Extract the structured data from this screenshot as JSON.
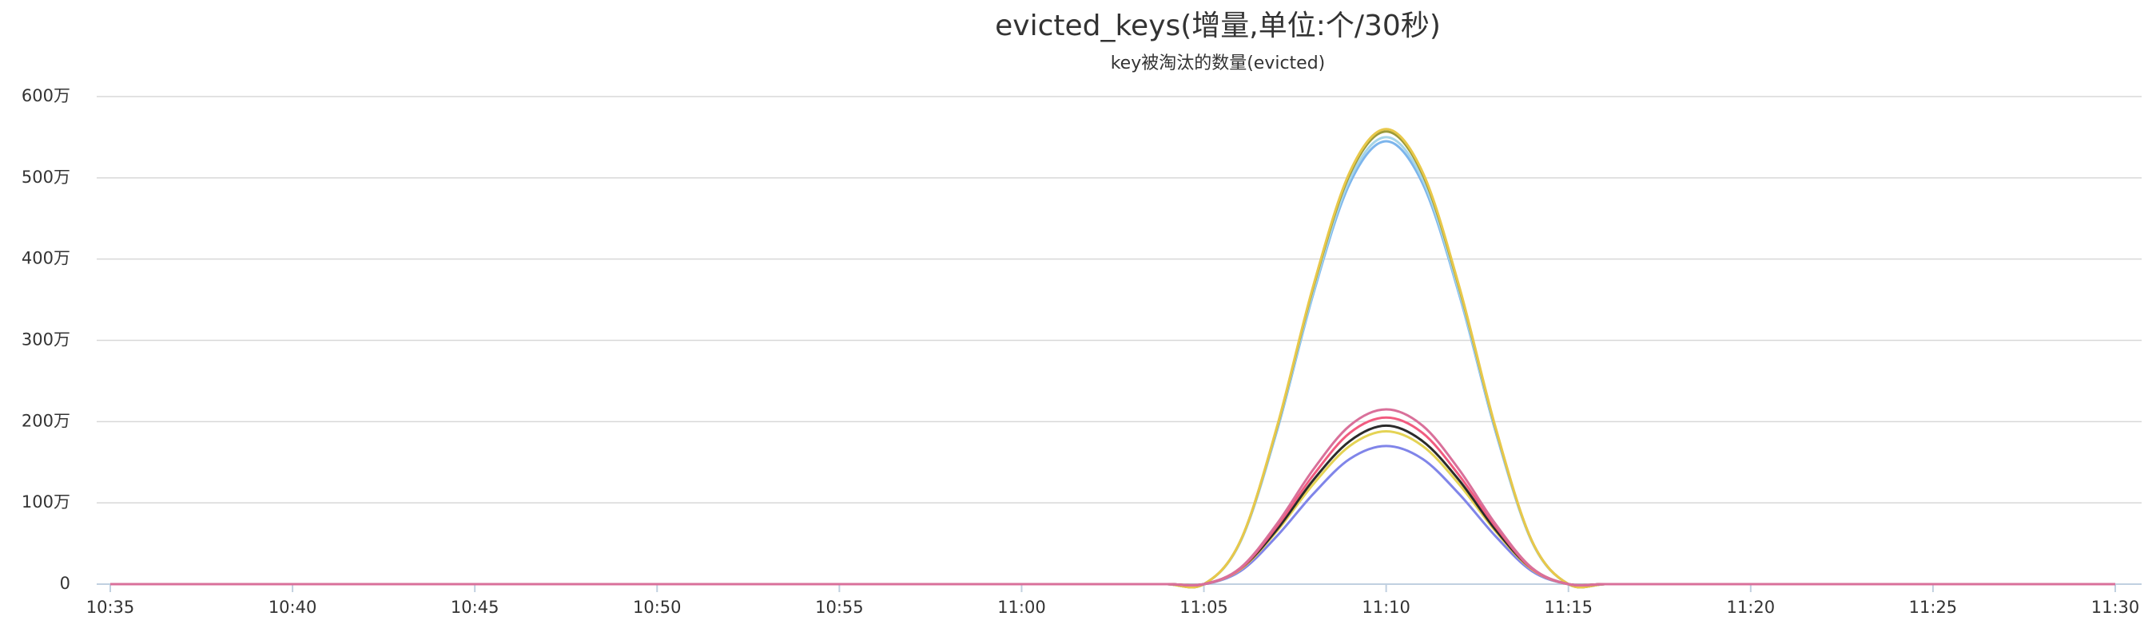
{
  "chart_data": {
    "type": "line",
    "title": "evicted_keys(增量,单位:个/30秒)",
    "subtitle": "key被淘汰的数量(evicted)",
    "categories": [
      "10:35",
      null,
      null,
      null,
      null,
      "10:40",
      null,
      null,
      null,
      null,
      "10:45",
      null,
      null,
      null,
      null,
      "10:50",
      null,
      null,
      null,
      null,
      "10:55",
      null,
      null,
      null,
      null,
      "11:00",
      null,
      null,
      null,
      null,
      "11:05",
      null,
      null,
      null,
      null,
      "11:10",
      null,
      null,
      null,
      null,
      "11:15",
      null,
      null,
      null,
      null,
      "11:20",
      null,
      null,
      null,
      null,
      "11:25",
      null,
      null,
      null,
      null,
      "11:30"
    ],
    "ylim": [
      0,
      600
    ],
    "yticks": [
      0,
      {
        "value": 100,
        "label": "100万"
      },
      {
        "value": 200,
        "label": "200万"
      },
      {
        "value": 300,
        "label": "300万"
      },
      {
        "value": 400,
        "label": "400万"
      },
      {
        "value": 500,
        "label": "500万"
      },
      {
        "value": 600,
        "label": "600万"
      }
    ],
    "grid": true,
    "series": [
      {
        "color": "#7cb5ec",
        "values": [
          0,
          0,
          0,
          0,
          0,
          0,
          0,
          0,
          0,
          0,
          0,
          0,
          0,
          0,
          0,
          0,
          0,
          0,
          0,
          0,
          0,
          0,
          0,
          0,
          0,
          0,
          0,
          0,
          0,
          0,
          0,
          52,
          188,
          357,
          493,
          545,
          493,
          357,
          188,
          52,
          0,
          0,
          0,
          0,
          0,
          0,
          0,
          0,
          0,
          0,
          0,
          0,
          0,
          0,
          0,
          0
        ]
      },
      {
        "color": "#a6d5e8",
        "values": [
          0,
          0,
          0,
          0,
          0,
          0,
          0,
          0,
          0,
          0,
          0,
          0,
          0,
          0,
          0,
          0,
          0,
          0,
          0,
          0,
          0,
          0,
          0,
          0,
          0,
          0,
          0,
          0,
          0,
          0,
          0,
          52,
          190,
          360,
          498,
          550,
          498,
          360,
          190,
          52,
          0,
          0,
          0,
          0,
          0,
          0,
          0,
          0,
          0,
          0,
          0,
          0,
          0,
          0,
          0,
          0
        ]
      },
      {
        "color": "#9c9a3a",
        "values": [
          0,
          0,
          0,
          0,
          0,
          0,
          0,
          0,
          0,
          0,
          0,
          0,
          0,
          0,
          0,
          0,
          0,
          0,
          0,
          0,
          0,
          0,
          0,
          0,
          0,
          0,
          0,
          0,
          0,
          0,
          0,
          53,
          192,
          365,
          504,
          557,
          504,
          365,
          192,
          53,
          0,
          0,
          0,
          0,
          0,
          0,
          0,
          0,
          0,
          0,
          0,
          0,
          0,
          0,
          0,
          0
        ]
      },
      {
        "color": "#e8c84a",
        "values": [
          0,
          0,
          0,
          0,
          0,
          0,
          0,
          0,
          0,
          0,
          0,
          0,
          0,
          0,
          0,
          0,
          0,
          0,
          0,
          0,
          0,
          0,
          0,
          0,
          0,
          0,
          0,
          0,
          0,
          0,
          0,
          53,
          193,
          367,
          507,
          560,
          507,
          367,
          193,
          53,
          0,
          0,
          0,
          0,
          0,
          0,
          0,
          0,
          0,
          0,
          0,
          0,
          0,
          0,
          0,
          0
        ]
      },
      {
        "color": "#8085e9",
        "values": [
          0,
          0,
          0,
          0,
          0,
          0,
          0,
          0,
          0,
          0,
          0,
          0,
          0,
          0,
          0,
          0,
          0,
          0,
          0,
          0,
          0,
          0,
          0,
          0,
          0,
          0,
          0,
          0,
          0,
          0,
          0,
          16,
          59,
          111,
          154,
          170,
          154,
          111,
          59,
          16,
          0,
          0,
          0,
          0,
          0,
          0,
          0,
          0,
          0,
          0,
          0,
          0,
          0,
          0,
          0,
          0
        ]
      },
      {
        "color": "#e4d354",
        "values": [
          0,
          0,
          0,
          0,
          0,
          0,
          0,
          0,
          0,
          0,
          0,
          0,
          0,
          0,
          0,
          0,
          0,
          0,
          0,
          0,
          0,
          0,
          0,
          0,
          0,
          0,
          0,
          0,
          0,
          0,
          0,
          18,
          65,
          123,
          170,
          188,
          170,
          123,
          65,
          18,
          0,
          0,
          0,
          0,
          0,
          0,
          0,
          0,
          0,
          0,
          0,
          0,
          0,
          0,
          0,
          0
        ]
      },
      {
        "color": "#2b2b2b",
        "values": [
          0,
          0,
          0,
          0,
          0,
          0,
          0,
          0,
          0,
          0,
          0,
          0,
          0,
          0,
          0,
          0,
          0,
          0,
          0,
          0,
          0,
          0,
          0,
          0,
          0,
          0,
          0,
          0,
          0,
          0,
          0,
          19,
          67,
          128,
          176,
          195,
          176,
          128,
          67,
          19,
          0,
          0,
          0,
          0,
          0,
          0,
          0,
          0,
          0,
          0,
          0,
          0,
          0,
          0,
          0,
          0
        ]
      },
      {
        "color": "#f15c80",
        "values": [
          0,
          0,
          0,
          0,
          0,
          0,
          0,
          0,
          0,
          0,
          0,
          0,
          0,
          0,
          0,
          0,
          0,
          0,
          0,
          0,
          0,
          0,
          0,
          0,
          0,
          0,
          0,
          0,
          0,
          0,
          0,
          19,
          71,
          134,
          186,
          205,
          186,
          134,
          71,
          19,
          0,
          0,
          0,
          0,
          0,
          0,
          0,
          0,
          0,
          0,
          0,
          0,
          0,
          0,
          0,
          0
        ]
      },
      {
        "color": "#d9709a",
        "values": [
          0,
          0,
          0,
          0,
          0,
          0,
          0,
          0,
          0,
          0,
          0,
          0,
          0,
          0,
          0,
          0,
          0,
          0,
          0,
          0,
          0,
          0,
          0,
          0,
          0,
          0,
          0,
          0,
          0,
          0,
          0,
          20,
          74,
          141,
          195,
          215,
          195,
          141,
          74,
          20,
          0,
          0,
          0,
          0,
          0,
          0,
          0,
          0,
          0,
          0,
          0,
          0,
          0,
          0,
          0,
          0
        ]
      }
    ]
  }
}
